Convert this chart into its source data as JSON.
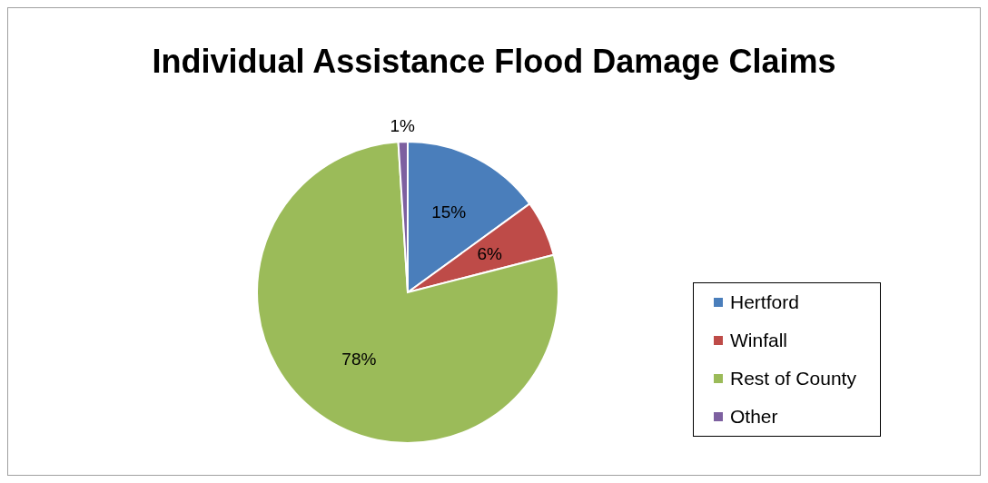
{
  "chart_data": {
    "type": "pie",
    "title": "Individual Assistance Flood Damage Claims",
    "categories": [
      "Hertford",
      "Winfall",
      "Rest of County",
      "Other"
    ],
    "values": [
      15,
      6,
      78,
      1
    ],
    "colors": [
      "#4a7ebb",
      "#be4b48",
      "#9bbb59",
      "#7d60a0"
    ],
    "value_labels": [
      "15%",
      "6%",
      "78%",
      "1%"
    ],
    "legend": "right"
  }
}
